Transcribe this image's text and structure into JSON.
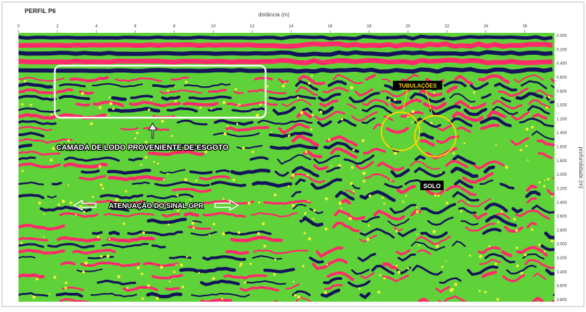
{
  "header": {
    "title": "PERFIL P6"
  },
  "x_axis": {
    "label": "distância (m)",
    "ticks": [
      "0",
      "2",
      "4",
      "6",
      "8",
      "10",
      "12",
      "14",
      "16",
      "18",
      "20",
      "22",
      "24",
      "26"
    ]
  },
  "y_axis": {
    "label": "profundidade (m)",
    "ticks": [
      "0.000",
      "0.200",
      "0.400",
      "0.600",
      "0.800",
      "1.000",
      "1.200",
      "1.400",
      "1.600",
      "1.800",
      "2.000",
      "2.200",
      "2.400",
      "2.600",
      "2.800",
      "3.000",
      "3.200",
      "3.400",
      "3.600",
      "3.800"
    ]
  },
  "annotations": {
    "sludge_layer": "CAMADA DE LODO PROVENIENTE DE ESGOTO",
    "attenuation": "ATENUAÇÃO DO SINAL GPR",
    "pipes": "TUBULAÇÕES",
    "soil": "SOLO"
  }
}
